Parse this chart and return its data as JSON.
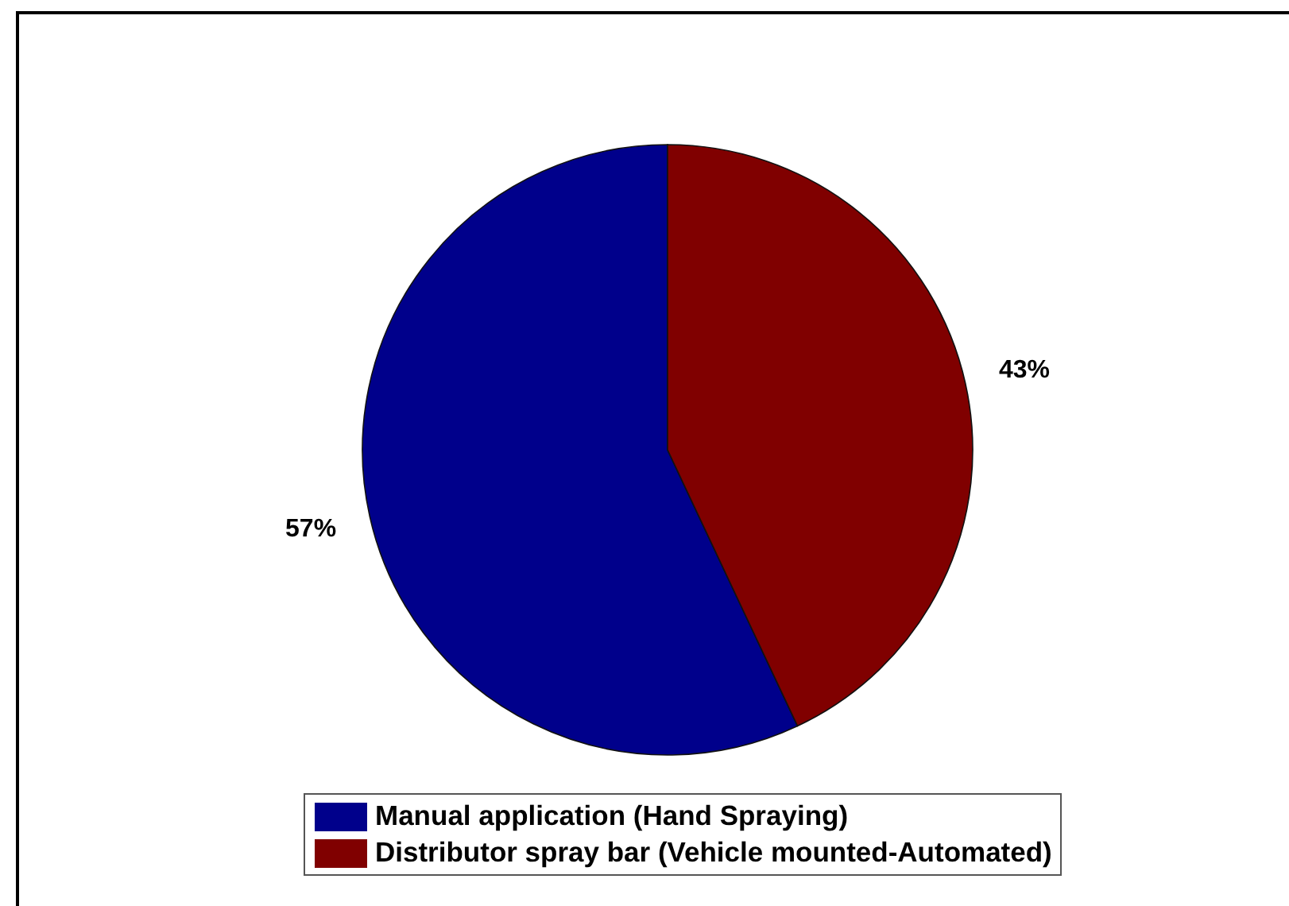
{
  "chart_data": {
    "type": "pie",
    "categories": [
      "Manual application (Hand Spraying)",
      "Distributor spray bar (Vehicle mounted-Automated)"
    ],
    "values": [
      57,
      43
    ],
    "colors": [
      "#00008b",
      "#800000"
    ],
    "value_labels": [
      "57%",
      "43%"
    ],
    "legend": "bottom"
  }
}
